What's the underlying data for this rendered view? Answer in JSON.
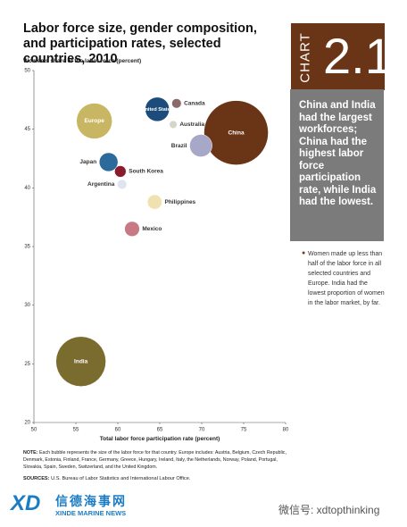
{
  "chart_data": {
    "type": "bubble",
    "title": "Labor force size, gender composition, and participation rates, selected countries, 2010",
    "y_label": "Women's share of the labor force (percent)",
    "x_label": "Total labor force participation rate (percent)",
    "categories": [
      "Canada",
      "United States",
      "Australia",
      "Europe",
      "China",
      "Brazil",
      "Japan",
      "South Korea",
      "Argentina",
      "Philippines",
      "Mexico",
      "India"
    ],
    "x": [
      67.0,
      64.7,
      66.6,
      57.2,
      74.1,
      69.9,
      58.9,
      60.3,
      60.5,
      64.4,
      61.7,
      55.6
    ],
    "values": [
      47.2,
      46.7,
      45.4,
      45.7,
      44.7,
      43.6,
      42.2,
      41.4,
      40.3,
      38.8,
      36.5,
      25.2
    ],
    "sizes": [
      17,
      110,
      11,
      240,
      780,
      95,
      66,
      25,
      17,
      40,
      42,
      470
    ],
    "colors": [
      "#8c6a6c",
      "#1d4c7c",
      "#d6d6c6",
      "#c9b662",
      "#6a3417",
      "#a7a8c8",
      "#2d6a9c",
      "#8a1a2c",
      "#dfe4ee",
      "#f2e1b0",
      "#c87a84",
      "#7a6b2f"
    ],
    "xlim": [
      50,
      80
    ],
    "xticks": [
      50,
      55,
      60,
      65,
      70,
      75,
      80
    ],
    "ylim": [
      20,
      50
    ],
    "yticks": [
      20,
      25,
      30,
      35,
      40,
      45,
      50
    ]
  },
  "sidebar": {
    "chart_label": "CHART",
    "chart_number": "2.1",
    "highlight": "China and India had the largest workforces; China had the highest labor force participation rate, while India had the lowest.",
    "bullet": "Women made up less than half of the labor force in all selected countries and Europe. India had the lowest proportion of women in the labor market, by far."
  },
  "notes": {
    "note_label": "NOTE:",
    "note": "Each bubble represents the size of the labor force for that country. Europe includes: Austria, Belgium, Czech Republic, Denmark, Estonia, Finland, France, Germany, Greece, Hungary, Ireland, Italy, the Netherlands, Norway, Poland, Portugal, Slovakia, Spain, Sweden, Switzerland, and the United Kingdom.",
    "sources_label": "SOURCES:",
    "sources": "U.S. Bureau of Labor Statistics and International Labour Office."
  },
  "footer": {
    "logo": "XD",
    "brand_cn": "信德海事网",
    "brand_en": "XINDE MARINE NEWS",
    "wechat": "微信号: xdtopthinking"
  }
}
